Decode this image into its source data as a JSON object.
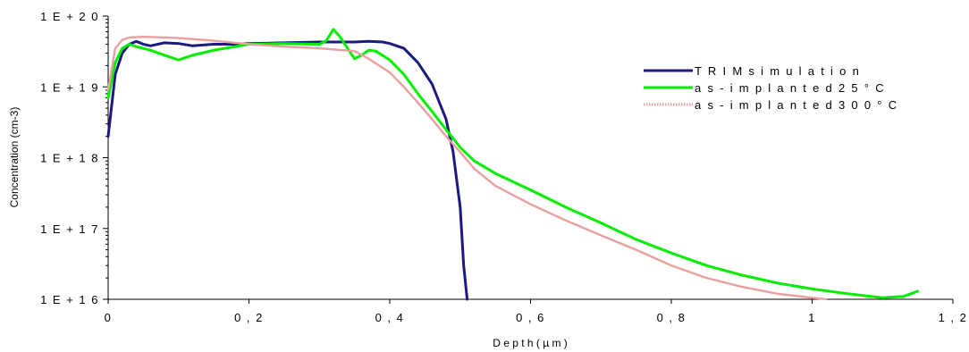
{
  "chart_data": {
    "type": "line",
    "title": "",
    "xlabel": "D e p t h  ( µ m )",
    "ylabel": "Concentration (cm-3)",
    "xlim": [
      0,
      1.2
    ],
    "ylim": [
      1e+16,
      1e+20
    ],
    "yscale": "log",
    "grid": false,
    "legend_position": "top-right",
    "x_ticks": [
      0,
      0.2,
      0.4,
      0.6,
      0.8,
      1.0,
      1.2
    ],
    "x_tick_labels": [
      "0",
      "0 , 2",
      "0 , 4",
      "0 , 6",
      "0 , 8",
      "1",
      "1 , 2"
    ],
    "y_ticks": [
      1e+16,
      1e+17,
      1e+18,
      1e+19,
      1e+20
    ],
    "y_tick_labels": [
      "1 E + 1 6",
      "1 E + 1 7",
      "1 E + 1 8",
      "1 E + 1 9",
      "1 E + 2 0"
    ],
    "series": [
      {
        "name": "T R I M  s i m u l a t i o n",
        "color": "#1a1a80",
        "style": "solid",
        "x": [
          0.0,
          0.01,
          0.02,
          0.03,
          0.04,
          0.05,
          0.06,
          0.08,
          0.1,
          0.12,
          0.15,
          0.18,
          0.2,
          0.25,
          0.3,
          0.35,
          0.37,
          0.39,
          0.4,
          0.42,
          0.44,
          0.46,
          0.48,
          0.49,
          0.5,
          0.505,
          0.51
        ],
        "y": [
          2e+18,
          1.5e+19,
          3e+19,
          4e+19,
          4.4e+19,
          4e+19,
          3.8e+19,
          4.2e+19,
          4.1e+19,
          3.8e+19,
          4e+19,
          4e+19,
          4.1e+19,
          4.2e+19,
          4.3e+19,
          4.3e+19,
          4.4e+19,
          4.3e+19,
          4.1e+19,
          3.5e+19,
          2.2e+19,
          1.1e+19,
          3.5e+18,
          1.2e+18,
          2e+17,
          3e+16,
          1e+16
        ]
      },
      {
        "name": "a s - i m p l a n t e d  2 5 ° C",
        "color": "#00ee00",
        "style": "solid",
        "x": [
          0.0,
          0.01,
          0.02,
          0.03,
          0.04,
          0.06,
          0.08,
          0.1,
          0.12,
          0.15,
          0.18,
          0.2,
          0.25,
          0.3,
          0.31,
          0.32,
          0.33,
          0.34,
          0.35,
          0.36,
          0.37,
          0.38,
          0.4,
          0.42,
          0.44,
          0.46,
          0.48,
          0.5,
          0.52,
          0.55,
          0.6,
          0.65,
          0.7,
          0.75,
          0.8,
          0.85,
          0.9,
          0.95,
          1.0,
          1.05,
          1.1,
          1.13,
          1.15
        ],
        "y": [
          7e+18,
          2.2e+19,
          3.5e+19,
          4e+19,
          3.7e+19,
          3.3e+19,
          2.8e+19,
          2.4e+19,
          2.8e+19,
          3.3e+19,
          3.7e+19,
          4e+19,
          4.1e+19,
          4e+19,
          4.5e+19,
          6.5e+19,
          5e+19,
          3.5e+19,
          2.5e+19,
          2.8e+19,
          3.3e+19,
          3.2e+19,
          2.4e+19,
          1.5e+19,
          8e+18,
          4.5e+18,
          2.5e+18,
          1.4e+18,
          9e+17,
          6e+17,
          3.5e+17,
          2e+17,
          1.2e+17,
          7e+16,
          4.5e+16,
          3e+16,
          2.2e+16,
          1.7e+16,
          1.4e+16,
          1.2e+16,
          1.05e+16,
          1.1e+16,
          1.3e+16
        ]
      },
      {
        "name": "a s - i m p l a n t e d  3 0 0 ° C",
        "color": "#e8a0a0",
        "style": "dotted",
        "x": [
          0.0,
          0.01,
          0.02,
          0.03,
          0.05,
          0.08,
          0.1,
          0.15,
          0.2,
          0.25,
          0.3,
          0.35,
          0.37,
          0.4,
          0.42,
          0.44,
          0.46,
          0.48,
          0.5,
          0.52,
          0.55,
          0.6,
          0.65,
          0.7,
          0.75,
          0.8,
          0.85,
          0.9,
          0.95,
          1.0,
          1.02
        ],
        "y": [
          9e+18,
          3.5e+19,
          4.6e+19,
          5e+19,
          5.1e+19,
          5e+19,
          4.9e+19,
          4.5e+19,
          4e+19,
          3.7e+19,
          3.5e+19,
          3.2e+19,
          2.5e+19,
          1.6e+19,
          1e+19,
          6e+18,
          3.5e+18,
          2e+18,
          1.2e+18,
          7e+17,
          4e+17,
          2.2e+17,
          1.3e+17,
          8e+16,
          5e+16,
          3e+16,
          2e+16,
          1.5e+16,
          1.2e+16,
          1.05e+16,
          1e+16
        ]
      }
    ]
  }
}
